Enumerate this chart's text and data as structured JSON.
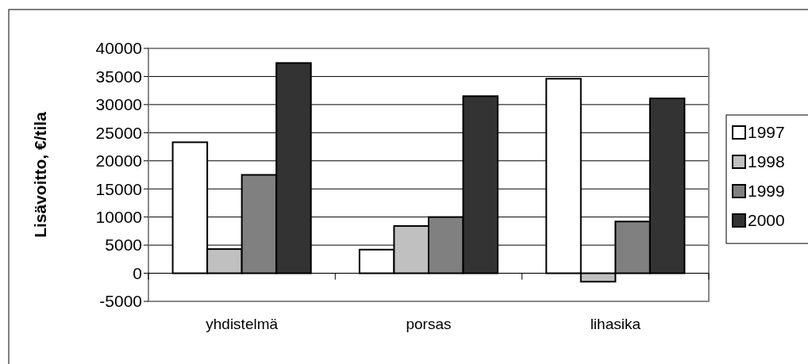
{
  "chart_data": {
    "type": "bar",
    "ylabel": "Lisävoitto, €/tila",
    "categories": [
      "yhdistelmä",
      "porsas",
      "lihasika"
    ],
    "series": [
      {
        "name": "1997",
        "color": "#ffffff",
        "values": [
          23300,
          4200,
          34600
        ]
      },
      {
        "name": "1998",
        "color": "#c0c0c0",
        "values": [
          4300,
          8400,
          -1500
        ]
      },
      {
        "name": "1999",
        "color": "#808080",
        "values": [
          17500,
          10000,
          9200
        ]
      },
      {
        "name": "2000",
        "color": "#333333",
        "values": [
          37400,
          31500,
          31100
        ]
      }
    ],
    "ylim": [
      -5000,
      40000
    ],
    "yticks": [
      -5000,
      0,
      5000,
      10000,
      15000,
      20000,
      25000,
      30000,
      35000,
      40000
    ],
    "grid": "y",
    "legend": "right"
  }
}
